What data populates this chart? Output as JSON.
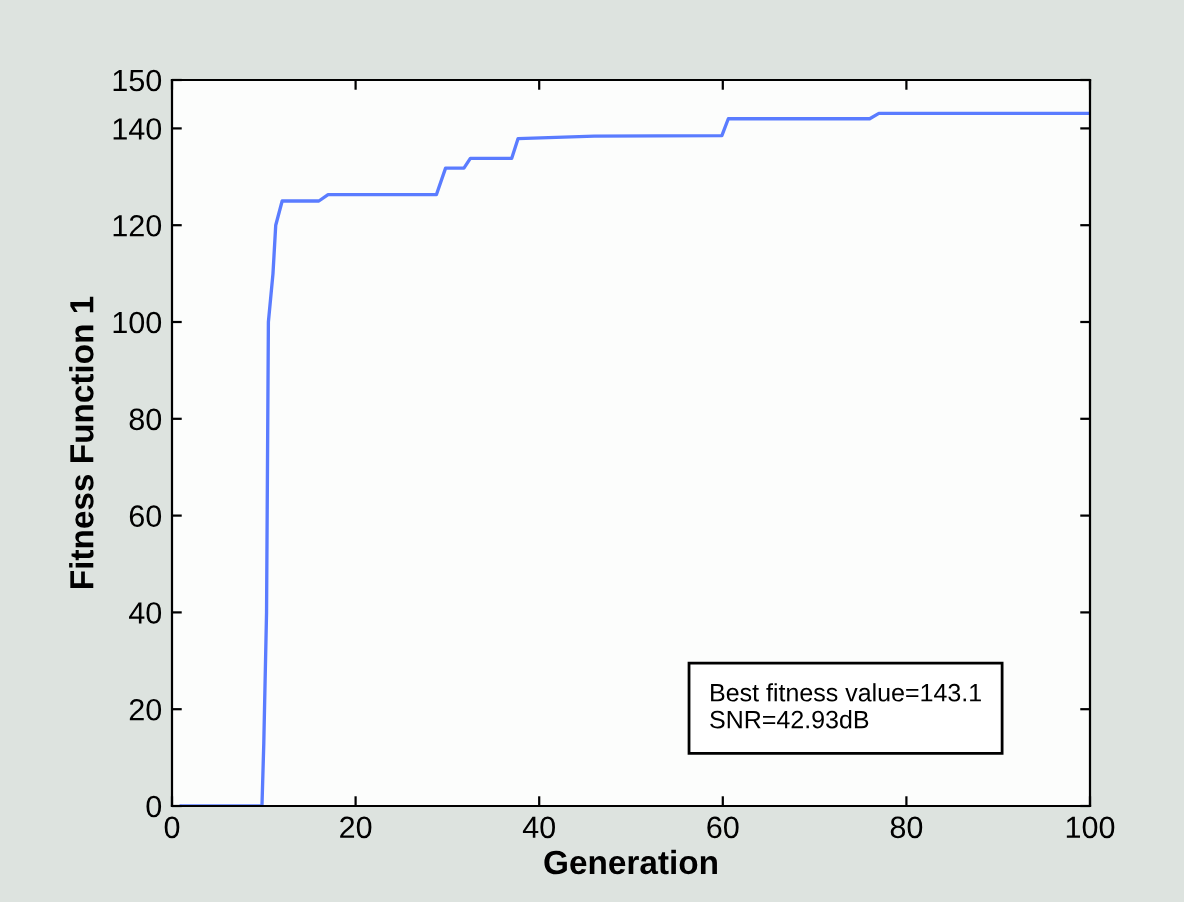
{
  "chart_data": {
    "type": "line",
    "xlabel": "Generation",
    "ylabel": "Fitness Function 1",
    "x": [
      1,
      9.8,
      10,
      10.3,
      10.5,
      11,
      11.3,
      12,
      16,
      17,
      28.8,
      29.8,
      31.8,
      32.5,
      37,
      37.7,
      46,
      59.9,
      60.6,
      76,
      77,
      100
    ],
    "series": [
      {
        "color": "#5a7cff",
        "values": [
          0,
          0,
          13,
          40,
          100,
          110,
          120,
          125,
          125,
          126.3,
          126.3,
          131.8,
          131.8,
          133.8,
          133.8,
          137.9,
          138.4,
          138.5,
          142,
          142,
          143.1,
          143.1
        ]
      }
    ],
    "xlim": [
      0,
      100
    ],
    "xticks": [
      0,
      20,
      40,
      60,
      80,
      100
    ],
    "ylim": [
      0,
      150
    ],
    "yticks": [
      0,
      20,
      40,
      60,
      80,
      100,
      120,
      140,
      150
    ],
    "grid": false,
    "legend": false,
    "annotations": [
      "Best fitness value=143.1\nSNR=42.93dB"
    ]
  }
}
